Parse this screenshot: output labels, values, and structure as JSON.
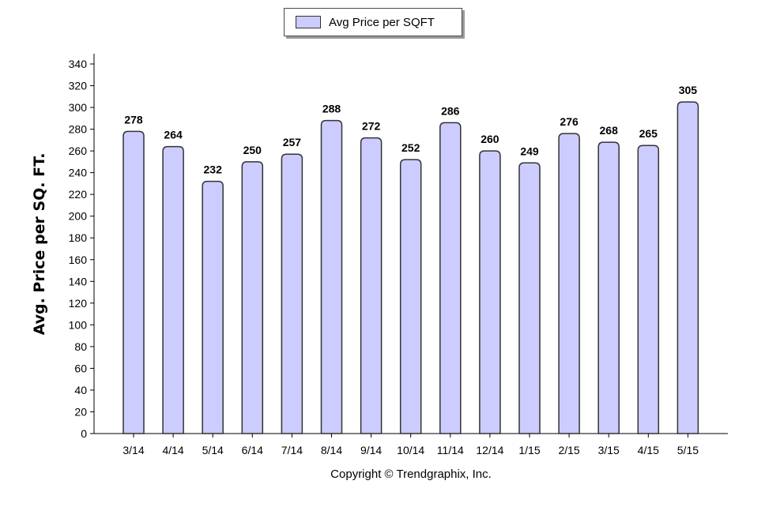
{
  "legend": {
    "series_label": "Avg Price per SQFT"
  },
  "footer": {
    "copyright": "Copyright © Trendgraphix, Inc."
  },
  "colors": {
    "bar_fill": "#ccccff",
    "bar_stroke": "#333333",
    "axis": "#000000"
  },
  "chart_data": {
    "type": "bar",
    "title": "",
    "xlabel": "",
    "ylabel": "Avg. Price per SQ. FT.",
    "ylim": [
      0,
      340
    ],
    "ytick_step": 20,
    "grid": false,
    "legend_position": "top-center",
    "categories": [
      "3/14",
      "4/14",
      "5/14",
      "6/14",
      "7/14",
      "8/14",
      "9/14",
      "10/14",
      "11/14",
      "12/14",
      "1/15",
      "2/15",
      "3/15",
      "4/15",
      "5/15"
    ],
    "series": [
      {
        "name": "Avg Price per SQFT",
        "values": [
          278,
          264,
          232,
          250,
          257,
          288,
          272,
          252,
          286,
          260,
          249,
          276,
          268,
          265,
          305
        ]
      }
    ]
  }
}
